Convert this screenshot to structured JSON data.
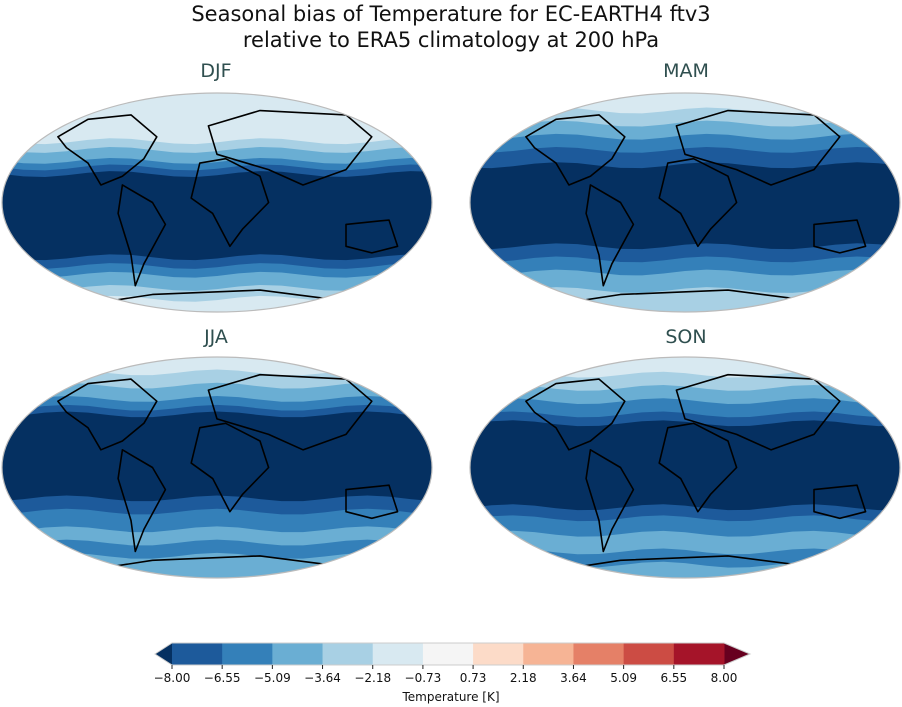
{
  "figure": {
    "title_line1": "Seasonal bias of Temperature for EC-EARTH4 ftv3",
    "title_line2": "relative to ERA5 climatology at 200 hPa"
  },
  "panels": [
    {
      "label": "DJF"
    },
    {
      "label": "MAM"
    },
    {
      "label": "JJA"
    },
    {
      "label": "SON"
    }
  ],
  "colorbar": {
    "label": "Temperature [K]",
    "ticks": [
      "−8.00",
      "−6.55",
      "−5.09",
      "−3.64",
      "−2.18",
      "−0.73",
      "0.73",
      "2.18",
      "3.64",
      "5.09",
      "6.55",
      "8.00"
    ],
    "colors": [
      "#1d5a9b",
      "#3480b9",
      "#6aaed3",
      "#a8d0e4",
      "#d8e9f1",
      "#f5f5f5",
      "#fcdbc8",
      "#f6b495",
      "#e58067",
      "#cc4c44",
      "#a51429"
    ],
    "under_color": "#053061",
    "over_color": "#67001f",
    "extend": "both"
  },
  "map": {
    "projection": "Robinson",
    "coastlines": true
  }
}
